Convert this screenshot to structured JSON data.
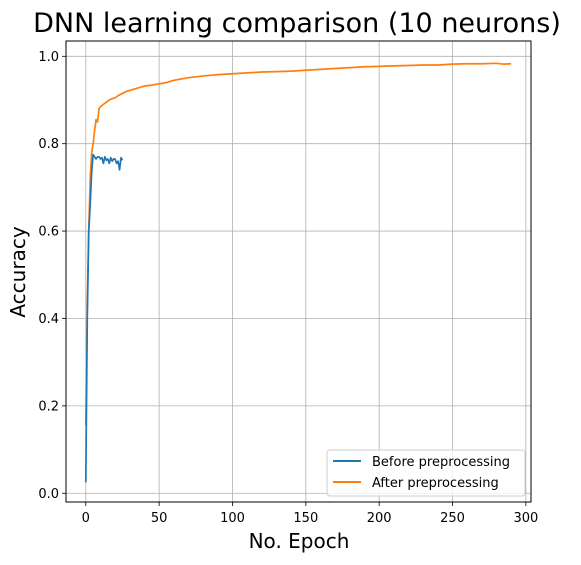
{
  "chart_data": {
    "type": "line",
    "title": "DNN learning comparison (10 neurons)",
    "xlabel": "No. Epoch",
    "ylabel": "Accuracy",
    "xlim": [
      -13.5,
      303.5
    ],
    "ylim": [
      -0.02,
      1.035
    ],
    "xticks": [
      0,
      50,
      100,
      150,
      200,
      250,
      300
    ],
    "yticks": [
      0.0,
      0.2,
      0.4,
      0.6,
      0.8,
      1.0
    ],
    "xtick_labels": [
      "0",
      "50",
      "100",
      "150",
      "200",
      "250",
      "300"
    ],
    "ytick_labels": [
      "0.0",
      "0.2",
      "0.4",
      "0.6",
      "0.8",
      "1.0"
    ],
    "grid": true,
    "legend_position": "lower-right",
    "series": [
      {
        "name": "Before preprocessing",
        "color": "#1f77b4",
        "x": [
          0,
          1,
          2,
          3,
          4,
          5,
          6,
          7,
          8,
          9,
          10,
          11,
          12,
          13,
          14,
          15,
          16,
          17,
          18,
          19,
          20,
          21,
          22,
          23,
          24,
          25
        ],
        "y": [
          0.025,
          0.4,
          0.6,
          0.66,
          0.735,
          0.775,
          0.77,
          0.765,
          0.77,
          0.77,
          0.765,
          0.768,
          0.755,
          0.77,
          0.762,
          0.765,
          0.755,
          0.768,
          0.76,
          0.765,
          0.765,
          0.755,
          0.76,
          0.74,
          0.768,
          0.762
        ]
      },
      {
        "name": "After preprocessing",
        "color": "#ff7f0e",
        "x": [
          0,
          1,
          2,
          3,
          4,
          5,
          6,
          7,
          8,
          9,
          10,
          12,
          14,
          16,
          18,
          20,
          22,
          25,
          28,
          30,
          35,
          40,
          45,
          50,
          55,
          60,
          65,
          70,
          80,
          90,
          100,
          110,
          120,
          130,
          140,
          150,
          160,
          170,
          180,
          190,
          200,
          210,
          220,
          230,
          240,
          250,
          260,
          270,
          280,
          285,
          290
        ],
        "y": [
          0.155,
          0.43,
          0.6,
          0.72,
          0.78,
          0.8,
          0.83,
          0.855,
          0.85,
          0.88,
          0.885,
          0.89,
          0.895,
          0.9,
          0.903,
          0.905,
          0.91,
          0.915,
          0.92,
          0.922,
          0.927,
          0.932,
          0.934,
          0.937,
          0.94,
          0.945,
          0.948,
          0.951,
          0.955,
          0.958,
          0.96,
          0.962,
          0.964,
          0.965,
          0.966,
          0.968,
          0.97,
          0.972,
          0.974,
          0.976,
          0.977,
          0.978,
          0.979,
          0.98,
          0.98,
          0.982,
          0.983,
          0.983,
          0.984,
          0.982,
          0.983
        ]
      }
    ]
  }
}
